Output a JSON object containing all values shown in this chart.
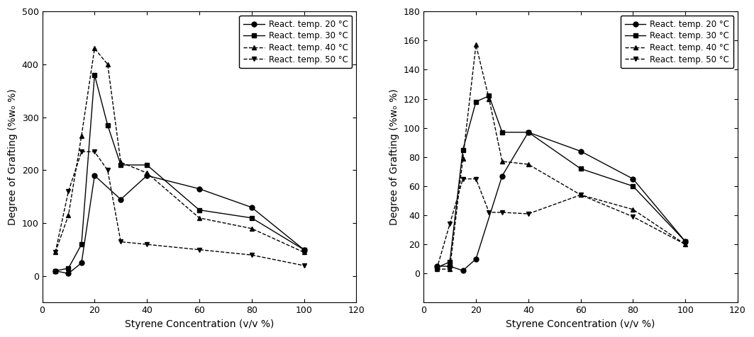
{
  "left": {
    "ylabel": "Degree of Grafting (%wₒ %)",
    "xlabel": "Styrene Concentration (v/v %)",
    "xlim": [
      0,
      120
    ],
    "ylim": [
      -50,
      500
    ],
    "yticks": [
      0,
      100,
      200,
      300,
      400,
      500
    ],
    "xticks": [
      0,
      20,
      40,
      60,
      80,
      100,
      120
    ],
    "series": [
      {
        "label": "React. temp. 20 °C",
        "x": [
          5,
          10,
          15,
          20,
          30,
          40,
          60,
          80,
          100
        ],
        "y": [
          10,
          5,
          25,
          190,
          145,
          190,
          165,
          130,
          50
        ],
        "marker": "o",
        "linestyle": "-"
      },
      {
        "label": "React. temp. 30 °C",
        "x": [
          5,
          10,
          15,
          20,
          25,
          30,
          40,
          60,
          80,
          100
        ],
        "y": [
          10,
          15,
          60,
          380,
          285,
          210,
          210,
          125,
          110,
          50
        ],
        "marker": "s",
        "linestyle": "-"
      },
      {
        "label": "React. temp. 40 °C",
        "x": [
          5,
          10,
          15,
          20,
          25,
          30,
          40,
          60,
          80,
          100
        ],
        "y": [
          45,
          115,
          265,
          430,
          400,
          215,
          195,
          110,
          90,
          45
        ],
        "marker": "^",
        "linestyle": "--"
      },
      {
        "label": "React. temp. 50 °C",
        "x": [
          5,
          10,
          15,
          20,
          25,
          30,
          40,
          60,
          80,
          100
        ],
        "y": [
          45,
          160,
          235,
          235,
          200,
          65,
          60,
          50,
          40,
          20
        ],
        "marker": "v",
        "linestyle": "--"
      }
    ]
  },
  "right": {
    "ylabel": "Degree of Grafting (%wₒ %)",
    "xlabel": "Styrene Concentration (v/v %)",
    "xlim": [
      0,
      120
    ],
    "ylim": [
      -20,
      180
    ],
    "yticks": [
      0,
      20,
      40,
      60,
      80,
      100,
      120,
      140,
      160,
      180
    ],
    "xticks": [
      0,
      20,
      40,
      60,
      80,
      100,
      120
    ],
    "series": [
      {
        "label": "React. temp. 20 °C",
        "x": [
          5,
          10,
          15,
          20,
          30,
          40,
          60,
          80,
          100
        ],
        "y": [
          5,
          5,
          2,
          10,
          67,
          97,
          84,
          65,
          22
        ],
        "marker": "o",
        "linestyle": "-"
      },
      {
        "label": "React. temp. 30 °C",
        "x": [
          5,
          10,
          15,
          20,
          25,
          30,
          40,
          60,
          80,
          100
        ],
        "y": [
          4,
          8,
          85,
          118,
          122,
          97,
          97,
          72,
          60,
          22
        ],
        "marker": "s",
        "linestyle": "-"
      },
      {
        "label": "React. temp. 40 °C",
        "x": [
          5,
          10,
          15,
          20,
          25,
          30,
          40,
          60,
          80,
          100
        ],
        "y": [
          3,
          3,
          79,
          157,
          120,
          77,
          75,
          54,
          44,
          20
        ],
        "marker": "^",
        "linestyle": "--"
      },
      {
        "label": "React. temp. 50 °C",
        "x": [
          5,
          10,
          15,
          20,
          25,
          30,
          40,
          60,
          80,
          100
        ],
        "y": [
          3,
          34,
          65,
          65,
          42,
          42,
          41,
          54,
          39,
          20
        ],
        "marker": "v",
        "linestyle": "--"
      }
    ]
  },
  "color": "black",
  "markersize": 5,
  "linewidth": 1.0
}
